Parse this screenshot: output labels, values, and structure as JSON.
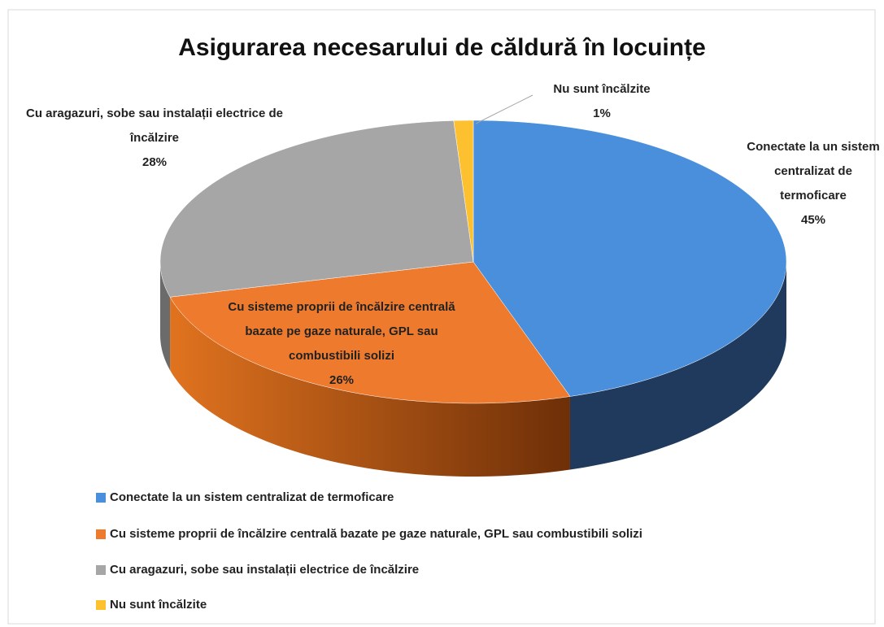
{
  "chart_data": {
    "type": "pie",
    "title": "Asigurarea necesarului de căldură în locuințe",
    "categories": [
      "Conectate la un sistem centralizat de termoficare",
      "Cu sisteme proprii de încălzire centrală bazate pe gaze naturale, GPL sau combustibili solizi",
      "Cu aragazuri, sobe sau instalații electrice de încălzire",
      "Nu sunt încălzite"
    ],
    "values": [
      45,
      26,
      28,
      1
    ],
    "value_labels": [
      "45%",
      "26%",
      "28%",
      "1%"
    ],
    "colors": [
      "#4a8fdc",
      "#ee7a2e",
      "#a6a6a6",
      "#fdc02f"
    ],
    "legend": "bottom"
  }
}
